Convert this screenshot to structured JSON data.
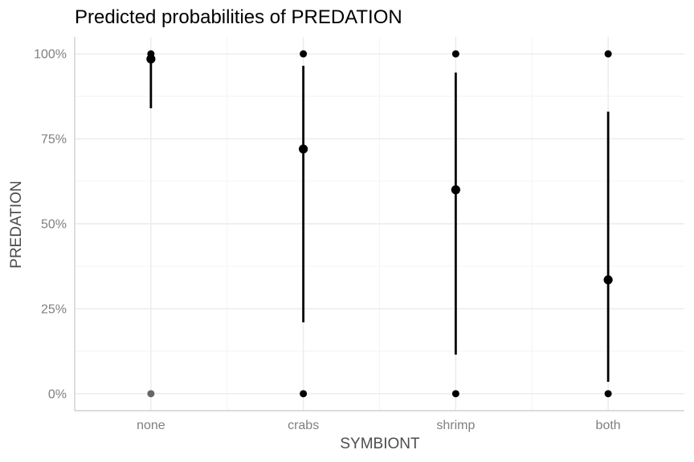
{
  "chart_data": {
    "type": "scatter",
    "title": "Predicted probabilities of PREDATION",
    "xlabel": "SYMBIONT",
    "ylabel": "PREDATION",
    "categories": [
      "none",
      "crabs",
      "shrimp",
      "both"
    ],
    "ylim": [
      -0.05,
      1.05
    ],
    "y_ticks": [
      0,
      0.25,
      0.5,
      0.75,
      1.0
    ],
    "y_tick_labels": [
      "0%",
      "25%",
      "50%",
      "75%",
      "100%"
    ],
    "grid": true,
    "colors": {
      "estimate": "#000000",
      "interval": "#000000",
      "observed": "#000000",
      "observed_muted": "#666666",
      "grid": "#ebebeb",
      "axis": "#c8c8c8"
    },
    "estimates": [
      {
        "category": "none",
        "predicted": 0.985,
        "ci_low": 0.84,
        "ci_high": 1.0
      },
      {
        "category": "crabs",
        "predicted": 0.72,
        "ci_low": 0.21,
        "ci_high": 0.965
      },
      {
        "category": "shrimp",
        "predicted": 0.6,
        "ci_low": 0.115,
        "ci_high": 0.945
      },
      {
        "category": "both",
        "predicted": 0.335,
        "ci_low": 0.035,
        "ci_high": 0.83
      }
    ],
    "observed": [
      {
        "category": "none",
        "value": 1,
        "muted": false
      },
      {
        "category": "none",
        "value": 0,
        "muted": true
      },
      {
        "category": "crabs",
        "value": 1,
        "muted": false
      },
      {
        "category": "crabs",
        "value": 0,
        "muted": false
      },
      {
        "category": "shrimp",
        "value": 1,
        "muted": false
      },
      {
        "category": "shrimp",
        "value": 0,
        "muted": false
      },
      {
        "category": "both",
        "value": 1,
        "muted": false
      },
      {
        "category": "both",
        "value": 0,
        "muted": false
      }
    ]
  }
}
